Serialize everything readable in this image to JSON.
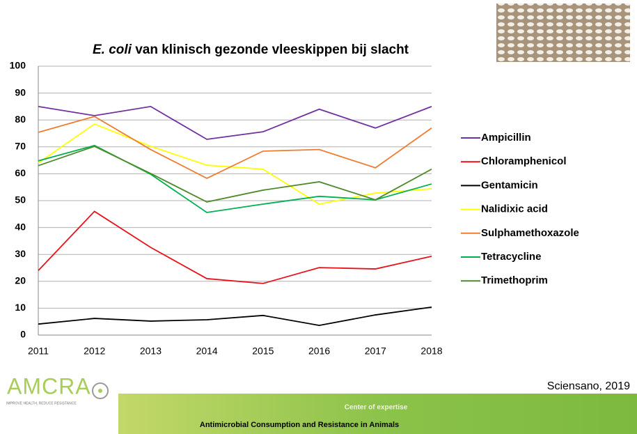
{
  "chart_data": {
    "type": "line",
    "title_italic": "E. coli",
    "title": "van klinisch gezonde vleeskippen bij slacht",
    "categories": [
      "2011",
      "2012",
      "2013",
      "2014",
      "2015",
      "2016",
      "2017",
      "2018"
    ],
    "series": [
      {
        "name": "Ampicillin",
        "color": "#7030a0",
        "values": [
          85,
          81.6,
          85,
          72.8,
          75.6,
          84,
          77,
          85
        ]
      },
      {
        "name": "Chloramphenicol",
        "color": "#e8121b",
        "values": [
          24,
          46,
          32.6,
          21,
          19.2,
          25.1,
          24.6,
          29.3
        ]
      },
      {
        "name": "Gentamicin",
        "color": "#000000",
        "values": [
          4.1,
          6.2,
          5.2,
          5.7,
          7.3,
          3.6,
          7.5,
          10.4
        ]
      },
      {
        "name": "Nalidixic acid",
        "color": "#ffff00",
        "values": [
          64,
          78.5,
          70.2,
          63.2,
          61.7,
          48.7,
          52.8,
          54.4
        ]
      },
      {
        "name": "Sulphamethoxazole",
        "color": "#ed7d31",
        "values": [
          75.4,
          81.3,
          69,
          58.3,
          68.4,
          69,
          62.2,
          77
        ]
      },
      {
        "name": "Tetracycline",
        "color": "#00b050",
        "values": [
          64.8,
          70.5,
          59.8,
          45.6,
          48.7,
          51.6,
          50.3,
          56.2
        ]
      },
      {
        "name": "Trimethoprim",
        "color": "#4e8a2a",
        "values": [
          63,
          70.2,
          60.1,
          49.5,
          53.9,
          57,
          50.3,
          61.7
        ]
      }
    ],
    "ylim": [
      0,
      100
    ],
    "yticks": [
      0,
      10,
      20,
      30,
      40,
      50,
      60,
      70,
      80,
      90,
      100
    ],
    "grid": true
  },
  "footer": {
    "logo": "AMCRA",
    "logo_tagline": "IMPROVE HEALTH, REDUCE RESISTANCE",
    "band_title": "Center of expertise",
    "band_subtitle": "Antimicrobial Consumption and Resistance in Animals",
    "source": "Sciensano, 2019"
  }
}
